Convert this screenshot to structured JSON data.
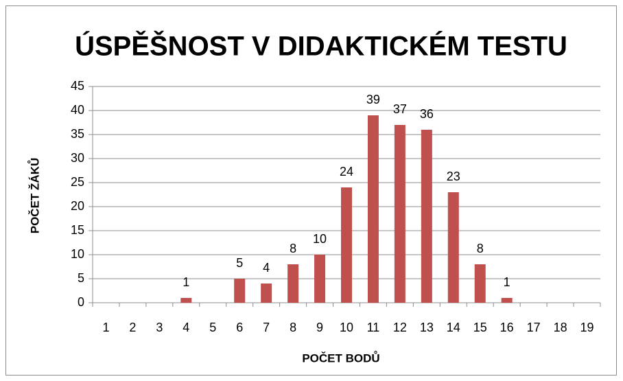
{
  "chart_data": {
    "type": "bar",
    "title": "ÚSPĚŠNOST V DIDAKTICKÉM TESTU",
    "x_label": "POČET BODŮ",
    "y_label": "POČET ŽÁKŮ",
    "categories": [
      "1",
      "2",
      "3",
      "4",
      "5",
      "6",
      "7",
      "8",
      "9",
      "10",
      "11",
      "12",
      "13",
      "14",
      "15",
      "16",
      "17",
      "18",
      "19"
    ],
    "values": [
      0,
      0,
      0,
      1,
      0,
      5,
      4,
      8,
      10,
      24,
      39,
      37,
      36,
      23,
      8,
      1,
      0,
      0,
      0
    ],
    "color": "#c0504d",
    "ylim": [
      0,
      45
    ],
    "yticks": [
      0,
      5,
      10,
      15,
      20,
      25,
      30,
      35,
      40,
      45
    ],
    "grid": true
  }
}
